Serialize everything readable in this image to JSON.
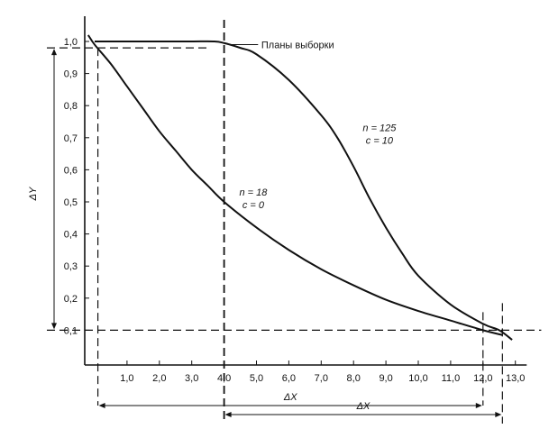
{
  "chart_data": {
    "type": "line",
    "title": "",
    "xlabel": "ΔX",
    "ylabel": "ΔY",
    "xlim": [
      -0.5,
      13.3
    ],
    "ylim": [
      -0.1,
      1.03
    ],
    "x_ticks": [
      "1,0",
      "2,0",
      "3,0",
      "4,0",
      "5,0",
      "6,0",
      "7,0",
      "8,0",
      "9,0",
      "10,0",
      "11,0",
      "12,0",
      "13,0"
    ],
    "x_tick_values": [
      1,
      2,
      3,
      4,
      5,
      6,
      7,
      8,
      9,
      10,
      11,
      12,
      13
    ],
    "y_ticks": [
      "0,1",
      "0,2",
      "0,3",
      "0,4",
      "0,5",
      "0,6",
      "0,7",
      "0,8",
      "0,9",
      "1,0"
    ],
    "y_tick_values": [
      0.1,
      0.2,
      0.3,
      0.4,
      0.5,
      0.6,
      0.7,
      0.8,
      0.9,
      1.0
    ],
    "annotation": "Планы выборки",
    "series": [
      {
        "n_label": "n = 18",
        "c_label": "c = 0",
        "x": [
          -0.2,
          0,
          0.5,
          1,
          1.5,
          2,
          2.5,
          3,
          3.5,
          4,
          5,
          6,
          7,
          8,
          9,
          10,
          11,
          12,
          12.6
        ],
        "y": [
          1.02,
          0.99,
          0.93,
          0.86,
          0.79,
          0.72,
          0.66,
          0.6,
          0.55,
          0.5,
          0.42,
          0.35,
          0.29,
          0.24,
          0.195,
          0.16,
          0.13,
          0.1,
          0.085
        ]
      },
      {
        "n_label": "n = 125",
        "c_label": "c = 10",
        "x": [
          0,
          1,
          2,
          3,
          3.7,
          4,
          4.5,
          5,
          6,
          7,
          7.5,
          8,
          8.5,
          9,
          9.5,
          10,
          11,
          12,
          12.5,
          12.9
        ],
        "y": [
          1.0,
          1.0,
          1.0,
          1.0,
          1.0,
          0.995,
          0.98,
          0.96,
          0.88,
          0.77,
          0.7,
          0.61,
          0.51,
          0.42,
          0.34,
          0.27,
          0.18,
          0.12,
          0.1,
          0.07
        ]
      }
    ],
    "reference_lines": {
      "horizontal": [
        0.1,
        0.98
      ],
      "vertical": [
        0.1,
        4.0,
        12.0,
        12.6
      ]
    },
    "delta_arrows": [
      {
        "label": "ΔX",
        "from": 0.1,
        "to": 12.0
      },
      {
        "label": "ΔX",
        "from": 4.0,
        "to": 12.6
      }
    ],
    "y_span_arrow": {
      "from": 0.1,
      "to": 0.98
    }
  }
}
